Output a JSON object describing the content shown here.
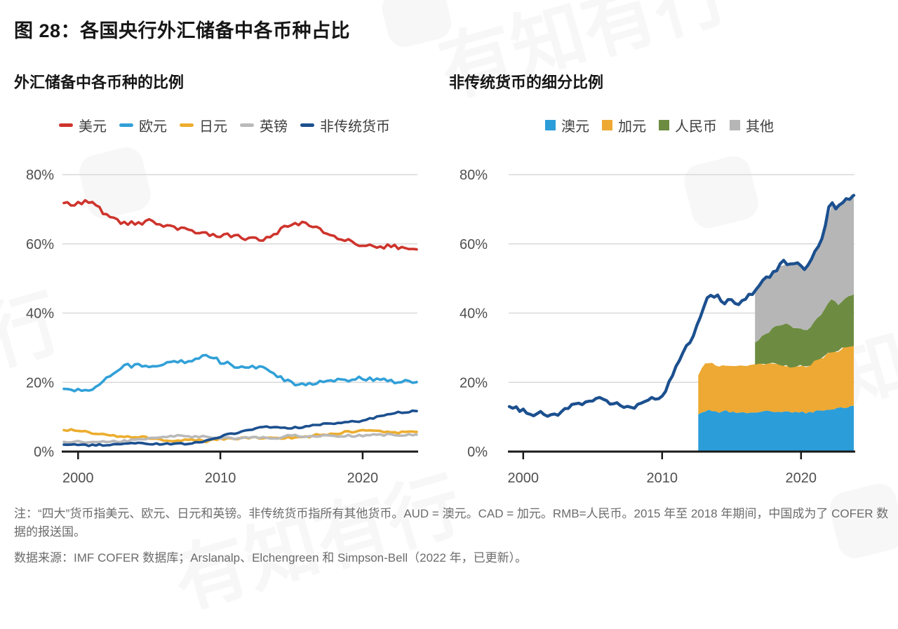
{
  "page": {
    "title": "图 28：各国央行外汇储备中各币种占比",
    "watermark_text": "有知有行"
  },
  "notes": {
    "note": "注：“四大”货币指美元、欧元、日元和英镑。非传统货币指所有其他货币。AUD = 澳元。CAD = 加元。RMB=人民币。2015 年至 2018 年期间，中国成为了 COFER 数据的报送国。",
    "source": "数据来源：IMF COFER 数据库；Arslanalp、Elchengreen 和 Simpson-Bell（2022 年，已更新）。"
  },
  "chart_data": [
    {
      "type": "line",
      "title": "外汇储备中各币种的比例",
      "legend_swatch": "dash",
      "legend_position": "top-center",
      "grid": true,
      "ylim": [
        0,
        84
      ],
      "yticks": [
        0,
        20,
        40,
        60,
        80
      ],
      "ytick_suffix": "%",
      "xticks": [
        2000,
        2010,
        2020
      ],
      "x": [
        1999,
        2000,
        2001,
        2002,
        2003,
        2004,
        2005,
        2006,
        2007,
        2008,
        2009,
        2010,
        2011,
        2012,
        2013,
        2014,
        2015,
        2016,
        2017,
        2018,
        2019,
        2020,
        2021,
        2022,
        2023,
        2023.8
      ],
      "series": [
        {
          "name": "美元",
          "color": "#ce342c",
          "jitter": 0.7,
          "values": [
            71.8,
            71.5,
            72.3,
            68.0,
            66.2,
            65.7,
            66.6,
            65.5,
            64.1,
            64.1,
            62.8,
            62.2,
            62.6,
            61.5,
            61.3,
            63.3,
            65.8,
            65.8,
            63.8,
            62.2,
            61.0,
            59.5,
            59.0,
            59.5,
            58.6,
            58.4
          ]
        },
        {
          "name": "欧元",
          "color": "#31a0d8",
          "jitter": 0.6,
          "values": [
            18.1,
            17.5,
            18.0,
            21.0,
            24.5,
            25.0,
            24.1,
            25.1,
            26.1,
            26.2,
            27.9,
            26.0,
            24.7,
            24.2,
            24.2,
            22.1,
            19.7,
            19.3,
            20.2,
            20.7,
            20.6,
            21.3,
            20.6,
            20.4,
            20.2,
            20.1
          ]
        },
        {
          "name": "日元",
          "color": "#ecad2e",
          "jitter": 0.3,
          "values": [
            6.2,
            6.1,
            5.3,
            4.9,
            4.4,
            4.3,
            3.9,
            3.4,
            3.2,
            3.5,
            3.0,
            3.7,
            3.6,
            4.1,
            3.8,
            3.9,
            4.0,
            4.2,
            4.9,
            5.2,
            5.7,
            6.0,
            5.8,
            5.5,
            5.6,
            5.7
          ]
        },
        {
          "name": "英镑",
          "color": "#b9b9b9",
          "jitter": 0.3,
          "values": [
            2.8,
            2.8,
            2.7,
            2.8,
            2.9,
            3.4,
            3.7,
            4.4,
            4.7,
            4.3,
            4.3,
            3.9,
            3.8,
            4.0,
            4.0,
            3.8,
            4.9,
            4.4,
            4.5,
            4.5,
            4.6,
            4.7,
            4.8,
            4.9,
            4.8,
            4.9
          ]
        },
        {
          "name": "非传统货币",
          "color": "#1c508f",
          "jitter": 0.25,
          "values": [
            2.0,
            1.9,
            1.8,
            2.0,
            2.2,
            2.4,
            2.3,
            2.2,
            2.2,
            2.3,
            3.1,
            4.4,
            5.3,
            6.3,
            7.0,
            7.0,
            6.8,
            7.2,
            7.8,
            8.1,
            8.5,
            8.8,
            10.0,
            11.0,
            11.5,
            11.7
          ]
        }
      ]
    },
    {
      "type": "area-line",
      "title": "非传统货币的细分比例",
      "legend_swatch": "square",
      "legend_from": "areas",
      "legend_position": "top-center",
      "grid": true,
      "ylim": [
        0,
        84
      ],
      "yticks": [
        0,
        20,
        40,
        60,
        80
      ],
      "ytick_suffix": "%",
      "xticks": [
        2000,
        2010,
        2020
      ],
      "areas_x": [
        2012.6,
        2012.8,
        2013,
        2013.5,
        2014,
        2014.5,
        2015,
        2015.5,
        2016,
        2016.4,
        2016.69,
        2017,
        2017.5,
        2018,
        2018.5,
        2019,
        2019.5,
        2020,
        2020.3,
        2020.7,
        2021,
        2021.5,
        2022,
        2022.3,
        2022.6,
        2023,
        2023.4,
        2023.8
      ],
      "areas": [
        {
          "name": "澳元",
          "color": "#2b9dd9",
          "jitter": 0.35,
          "top": [
            10.8,
            11.2,
            11.5,
            12.0,
            11.3,
            11.8,
            11.2,
            11.6,
            11.3,
            11.2,
            11.4,
            11.5,
            11.8,
            11.5,
            11.7,
            11.3,
            11.5,
            11.6,
            11.0,
            11.4,
            11.6,
            11.8,
            11.9,
            12.0,
            12.3,
            12.7,
            12.9,
            13.2
          ]
        },
        {
          "name": "加元",
          "color": "#eda933",
          "jitter": 0.35,
          "top": [
            22.0,
            24.0,
            25.0,
            25.8,
            24.6,
            25.2,
            24.6,
            25.0,
            24.6,
            25.0,
            25.3,
            25.0,
            25.5,
            25.6,
            25.2,
            24.6,
            24.4,
            25.0,
            24.2,
            25.0,
            26.5,
            27.0,
            28.5,
            28.7,
            29.0,
            29.8,
            30.2,
            30.5
          ]
        },
        {
          "name": "人民币",
          "color": "#6d8c41",
          "jitter": 0.35,
          "top": [
            null,
            null,
            null,
            null,
            null,
            null,
            null,
            null,
            null,
            null,
            31.5,
            32.5,
            34.0,
            35.8,
            36.5,
            36.8,
            35.8,
            35.5,
            34.8,
            36.0,
            38.3,
            39.5,
            43.5,
            44.0,
            42.3,
            43.6,
            44.5,
            45.5
          ]
        },
        {
          "name": "其他",
          "color": "#b6b6b6",
          "jitter": 0.35,
          "top": [
            null,
            null,
            null,
            null,
            null,
            null,
            null,
            null,
            null,
            null,
            47.0,
            48.2,
            50.2,
            51.5,
            54.0,
            54.0,
            54.2,
            54.0,
            51.8,
            55.8,
            57.5,
            61.0,
            68.5,
            72.0,
            70.7,
            72.0,
            73.0,
            74.0
          ]
        }
      ],
      "line": {
        "name": "非传统货币合计",
        "color": "#1c508f",
        "jitter": 0.55,
        "points": [
          [
            1999,
            13.0
          ],
          [
            1999.5,
            12.4
          ],
          [
            2000,
            11.9
          ],
          [
            2000.8,
            10.4
          ],
          [
            2001.3,
            11.3
          ],
          [
            2002,
            10.1
          ],
          [
            2002.5,
            10.9
          ],
          [
            2003.1,
            12.5
          ],
          [
            2003.7,
            14.3
          ],
          [
            2004.3,
            13.4
          ],
          [
            2004.9,
            14.9
          ],
          [
            2005.5,
            15.5
          ],
          [
            2006.1,
            14.3
          ],
          [
            2006.7,
            13.9
          ],
          [
            2007.2,
            12.9
          ],
          [
            2007.8,
            12.4
          ],
          [
            2008.4,
            13.9
          ],
          [
            2009,
            15.3
          ],
          [
            2009.3,
            16.2
          ],
          [
            2009.6,
            15.1
          ],
          [
            2009.9,
            16.0
          ],
          [
            2010.1,
            15.2
          ],
          [
            2010.5,
            19.8
          ],
          [
            2011,
            24.5
          ],
          [
            2011.5,
            29.0
          ],
          [
            2012,
            32.0
          ],
          [
            2012.4,
            35.0
          ],
          [
            2012.7,
            38.5
          ],
          [
            2013,
            42.0
          ],
          [
            2013.4,
            46.0
          ],
          [
            2013.7,
            44.4
          ],
          [
            2014,
            45.0
          ],
          [
            2014.5,
            42.9
          ],
          [
            2015,
            44.0
          ],
          [
            2015.5,
            42.6
          ],
          [
            2016,
            44.4
          ],
          [
            2016.4,
            45.2
          ],
          [
            2016.7,
            47.0
          ],
          [
            2017,
            48.2
          ],
          [
            2017.5,
            50.2
          ],
          [
            2018,
            51.5
          ],
          [
            2018.5,
            54.0
          ],
          [
            2018.8,
            55.0
          ],
          [
            2019,
            54.0
          ],
          [
            2019.5,
            54.2
          ],
          [
            2019.9,
            54.8
          ],
          [
            2020.3,
            51.8
          ],
          [
            2020.7,
            55.8
          ],
          [
            2021,
            57.5
          ],
          [
            2021.5,
            61.0
          ],
          [
            2021.8,
            65.5
          ],
          [
            2022.1,
            72.5
          ],
          [
            2022.4,
            70.5
          ],
          [
            2022.8,
            71.0
          ],
          [
            2023,
            72.0
          ],
          [
            2023.4,
            73.0
          ],
          [
            2023.8,
            74.0
          ]
        ]
      }
    }
  ]
}
